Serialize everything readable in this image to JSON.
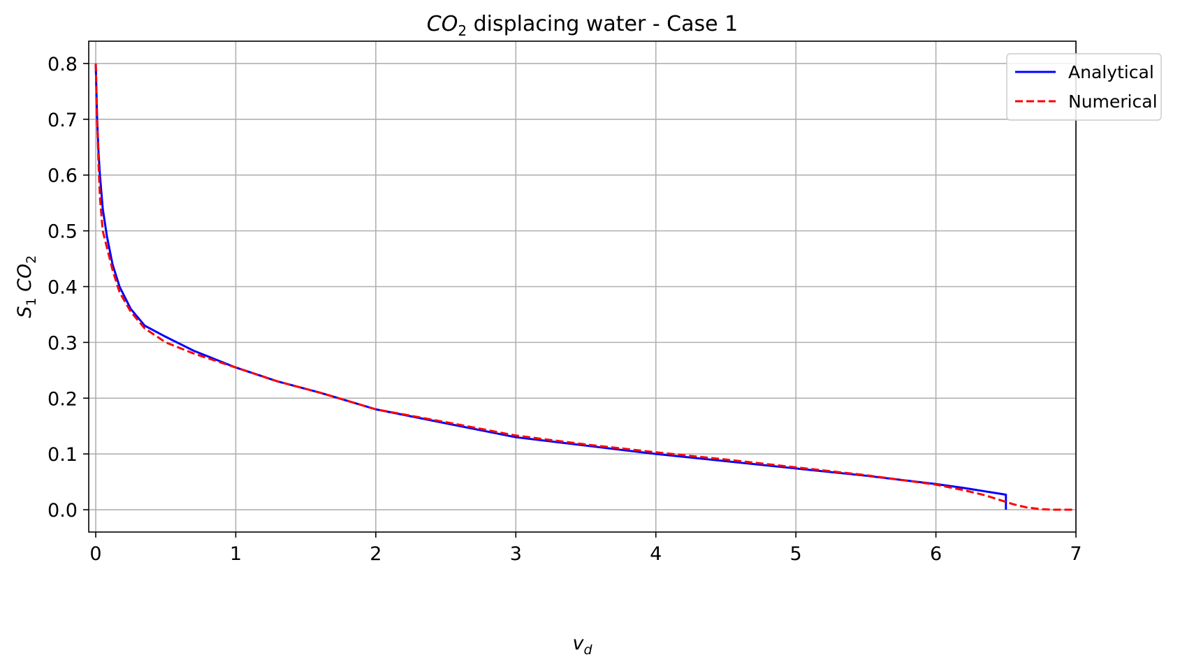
{
  "chart_data": {
    "type": "line",
    "title_prefix": "CO",
    "title_sub": "2",
    "title_rest": " displacing water - Case 1",
    "xlabel_main": "v",
    "xlabel_sub": "d",
    "ylabel_s": "S",
    "ylabel_s_sub": "1",
    "ylabel_co": "CO",
    "ylabel_co_sub": "2",
    "xlim": [
      -0.05,
      7
    ],
    "ylim": [
      -0.04,
      0.84
    ],
    "x_ticks": [
      0,
      1,
      2,
      3,
      4,
      5,
      6,
      7
    ],
    "x_tick_labels": [
      "0",
      "1",
      "2",
      "3",
      "4",
      "5",
      "6",
      "7"
    ],
    "y_ticks": [
      0.0,
      0.1,
      0.2,
      0.3,
      0.4,
      0.5,
      0.6,
      0.7,
      0.8
    ],
    "y_tick_labels": [
      "0.0",
      "0.1",
      "0.2",
      "0.3",
      "0.4",
      "0.5",
      "0.6",
      "0.7",
      "0.8"
    ],
    "grid": true,
    "legend_position": "top-right",
    "series": [
      {
        "name": "Analytical",
        "color": "#0000ff",
        "style": "solid",
        "x": [
          0.0,
          0.005,
          0.01,
          0.02,
          0.03,
          0.05,
          0.08,
          0.12,
          0.17,
          0.25,
          0.35,
          0.5,
          0.7,
          1.0,
          1.3,
          1.6,
          2.0,
          2.5,
          3.0,
          3.5,
          4.0,
          4.5,
          5.0,
          5.5,
          6.0,
          6.2,
          6.35,
          6.45,
          6.5,
          6.5
        ],
        "y": [
          0.8,
          0.75,
          0.7,
          0.64,
          0.6,
          0.54,
          0.49,
          0.44,
          0.4,
          0.36,
          0.33,
          0.31,
          0.285,
          0.255,
          0.23,
          0.21,
          0.18,
          0.155,
          0.13,
          0.115,
          0.1,
          0.087,
          0.074,
          0.061,
          0.046,
          0.039,
          0.033,
          0.029,
          0.027,
          0.0
        ]
      },
      {
        "name": "Numerical",
        "color": "#ff0000",
        "style": "dashed",
        "x": [
          0.0,
          0.005,
          0.01,
          0.02,
          0.03,
          0.05,
          0.08,
          0.12,
          0.17,
          0.25,
          0.35,
          0.5,
          0.7,
          1.0,
          1.3,
          1.6,
          2.0,
          2.5,
          3.0,
          3.5,
          4.0,
          4.5,
          5.0,
          5.5,
          6.0,
          6.2,
          6.35,
          6.45,
          6.55,
          6.65,
          6.75,
          6.85,
          7.0
        ],
        "y": [
          0.8,
          0.75,
          0.7,
          0.62,
          0.56,
          0.5,
          0.47,
          0.43,
          0.39,
          0.355,
          0.325,
          0.3,
          0.28,
          0.255,
          0.23,
          0.21,
          0.18,
          0.157,
          0.133,
          0.117,
          0.103,
          0.09,
          0.076,
          0.062,
          0.045,
          0.035,
          0.026,
          0.018,
          0.01,
          0.004,
          0.001,
          0.0,
          0.0
        ]
      }
    ]
  }
}
